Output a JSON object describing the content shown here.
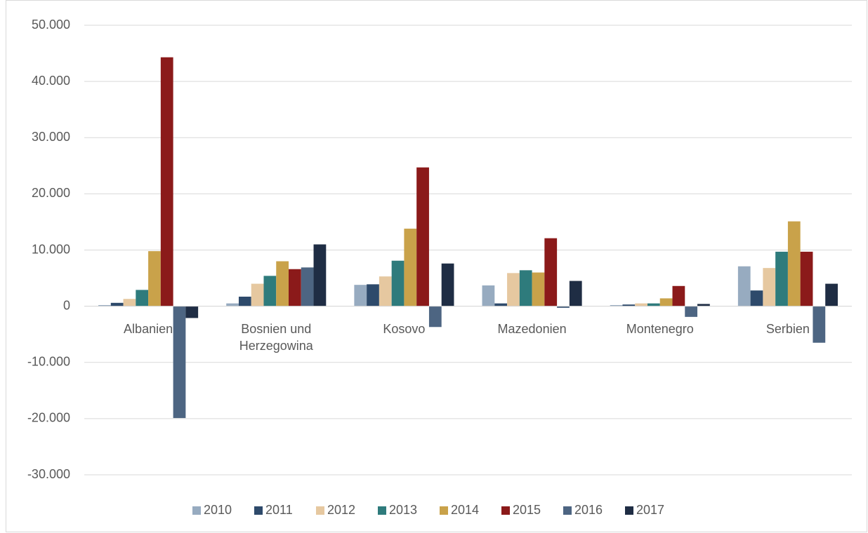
{
  "chart_data": {
    "type": "bar",
    "categories": [
      "Albanien",
      "Bosnien und Herzegowina",
      "Kosovo",
      "Mazedonien",
      "Montenegro",
      "Serbien"
    ],
    "series": [
      {
        "name": "2010",
        "color": "#97abc0",
        "values": [
          200,
          500,
          3800,
          3700,
          200,
          7100
        ]
      },
      {
        "name": "2011",
        "color": "#2e4a6b",
        "values": [
          600,
          1700,
          3900,
          500,
          300,
          2800
        ]
      },
      {
        "name": "2012",
        "color": "#e6c8a0",
        "values": [
          1300,
          4000,
          5300,
          5900,
          500,
          6800
        ]
      },
      {
        "name": "2013",
        "color": "#2e7b7c",
        "values": [
          2900,
          5400,
          8100,
          6400,
          500,
          9700
        ]
      },
      {
        "name": "2014",
        "color": "#c9a24a",
        "values": [
          9800,
          8000,
          13800,
          6000,
          1400,
          15100
        ]
      },
      {
        "name": "2015",
        "color": "#8b1a1a",
        "values": [
          44300,
          6600,
          24700,
          12100,
          3600,
          9700
        ]
      },
      {
        "name": "2016",
        "color": "#4d6582",
        "values": [
          -19900,
          6900,
          -3700,
          -300,
          -1900,
          -6500
        ]
      },
      {
        "name": "2017",
        "color": "#1f2d44",
        "values": [
          -2100,
          11000,
          7600,
          4500,
          400,
          4000
        ]
      }
    ],
    "ylim": [
      -30000,
      50000
    ],
    "yticks": [
      {
        "value": -30000,
        "label": "-30.000"
      },
      {
        "value": -20000,
        "label": "-20.000"
      },
      {
        "value": -10000,
        "label": "-10.000"
      },
      0,
      {
        "value": 10000,
        "label": "10.000"
      },
      {
        "value": 20000,
        "label": "20.000"
      },
      {
        "value": 30000,
        "label": "30.000"
      },
      {
        "value": 40000,
        "label": "40.000"
      },
      {
        "value": 50000,
        "label": "50.000"
      }
    ],
    "grid": true,
    "legend": "bottom"
  }
}
